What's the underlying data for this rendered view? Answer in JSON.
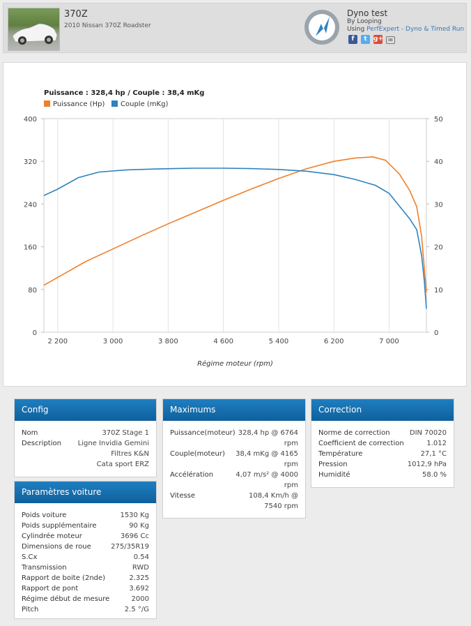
{
  "header": {
    "car_name": "370Z",
    "car_subtitle": "2010 Nissan 370Z Roadster",
    "app_title": "Dyno test",
    "by_line": "By Looping",
    "using_prefix": "Using",
    "using_link": "PerfExpert - Dyno & Timed Run",
    "social_icons": [
      "facebook-icon",
      "twitter-icon",
      "google-plus-icon",
      "mail-icon"
    ]
  },
  "chart_data": {
    "type": "line",
    "title": "Puissance : 328,4 hp / Couple : 38,4 mKg",
    "xlabel": "Régime moteur (rpm)",
    "x_ticks": [
      2200,
      3000,
      3800,
      4600,
      5400,
      6200,
      7000
    ],
    "x_tick_labels": [
      "2 200",
      "3 000",
      "3 800",
      "4 600",
      "5 400",
      "6 200",
      "7 000"
    ],
    "xlim": [
      2000,
      7540
    ],
    "y_left": {
      "lim": [
        0,
        400
      ],
      "ticks": [
        0,
        80,
        160,
        240,
        320,
        400
      ]
    },
    "y_right": {
      "lim": [
        0,
        50
      ],
      "ticks": [
        0,
        10,
        20,
        30,
        40,
        50
      ]
    },
    "series": [
      {
        "name": "Puissance (Hp)",
        "color": "#f07f2a",
        "axis": "left",
        "x": [
          2000,
          2300,
          2600,
          3000,
          3400,
          3800,
          4200,
          4600,
          5000,
          5400,
          5800,
          6200,
          6500,
          6764,
          6950,
          7150,
          7300,
          7400,
          7470,
          7510,
          7540
        ],
        "y": [
          88,
          110,
          132,
          156,
          180,
          203,
          225,
          247,
          268,
          288,
          306,
          320,
          326,
          328.4,
          322,
          296,
          265,
          235,
          180,
          120,
          75
        ]
      },
      {
        "name": "Couple (mKg)",
        "color": "#2d82bf",
        "axis": "right",
        "x": [
          2000,
          2200,
          2500,
          2800,
          3200,
          3600,
          4000,
          4165,
          4600,
          5000,
          5400,
          5800,
          6200,
          6500,
          6800,
          7000,
          7150,
          7300,
          7400,
          7470,
          7510,
          7540
        ],
        "y": [
          32.0,
          33.5,
          36.2,
          37.5,
          38.0,
          38.2,
          38.35,
          38.4,
          38.4,
          38.3,
          38.1,
          37.7,
          36.9,
          35.8,
          34.4,
          32.5,
          29.5,
          26.5,
          24.0,
          18.0,
          12.0,
          5.5
        ]
      }
    ],
    "legend_placement": "top-left",
    "grid": "vertical"
  },
  "config": {
    "title": "Config",
    "rows": [
      {
        "label": "Nom",
        "value": "370Z Stage 1"
      },
      {
        "label": "Description",
        "value": "Ligne Invidia Gemini\nFiltres K&N\nCata sport ERZ"
      }
    ]
  },
  "params": {
    "title": "Paramètres voiture",
    "rows": [
      {
        "label": "Poids voiture",
        "value": "1530 Kg"
      },
      {
        "label": "Poids supplémentaire",
        "value": "90 Kg"
      },
      {
        "label": "Cylindrée moteur",
        "value": "3696 Cc"
      },
      {
        "label": "Dimensions de roue",
        "value": "275/35R19"
      },
      {
        "label": "S.Cx",
        "value": "0.54"
      },
      {
        "label": "Transmission",
        "value": "RWD"
      },
      {
        "label": "Rapport de boite (2nde)",
        "value": "2.325"
      },
      {
        "label": "Rapport de pont",
        "value": "3.692"
      },
      {
        "label": "Régime début de mesure",
        "value": "2000"
      },
      {
        "label": "Pitch",
        "value": "2.5 °/G"
      }
    ]
  },
  "maximums": {
    "title": "Maximums",
    "rows": [
      {
        "label": "Puissance(moteur)",
        "value": "328,4 hp @ 6764\nrpm"
      },
      {
        "label": "Couple(moteur)",
        "value": "38,4 mKg @ 4165\nrpm"
      },
      {
        "label": "Accélération",
        "value": "4,07 m/s² @ 4000\nrpm"
      },
      {
        "label": "Vitesse",
        "value": "108,4 Km/h @\n7540 rpm"
      }
    ]
  },
  "correction": {
    "title": "Correction",
    "rows": [
      {
        "label": "Norme de correction",
        "value": "DIN 70020"
      },
      {
        "label": "Coefficient de correction",
        "value": "1.012"
      },
      {
        "label": "Température",
        "value": "27,1 °C"
      },
      {
        "label": "Pression",
        "value": "1012,9 hPa"
      },
      {
        "label": "Humidité",
        "value": "58.0 %"
      }
    ]
  }
}
